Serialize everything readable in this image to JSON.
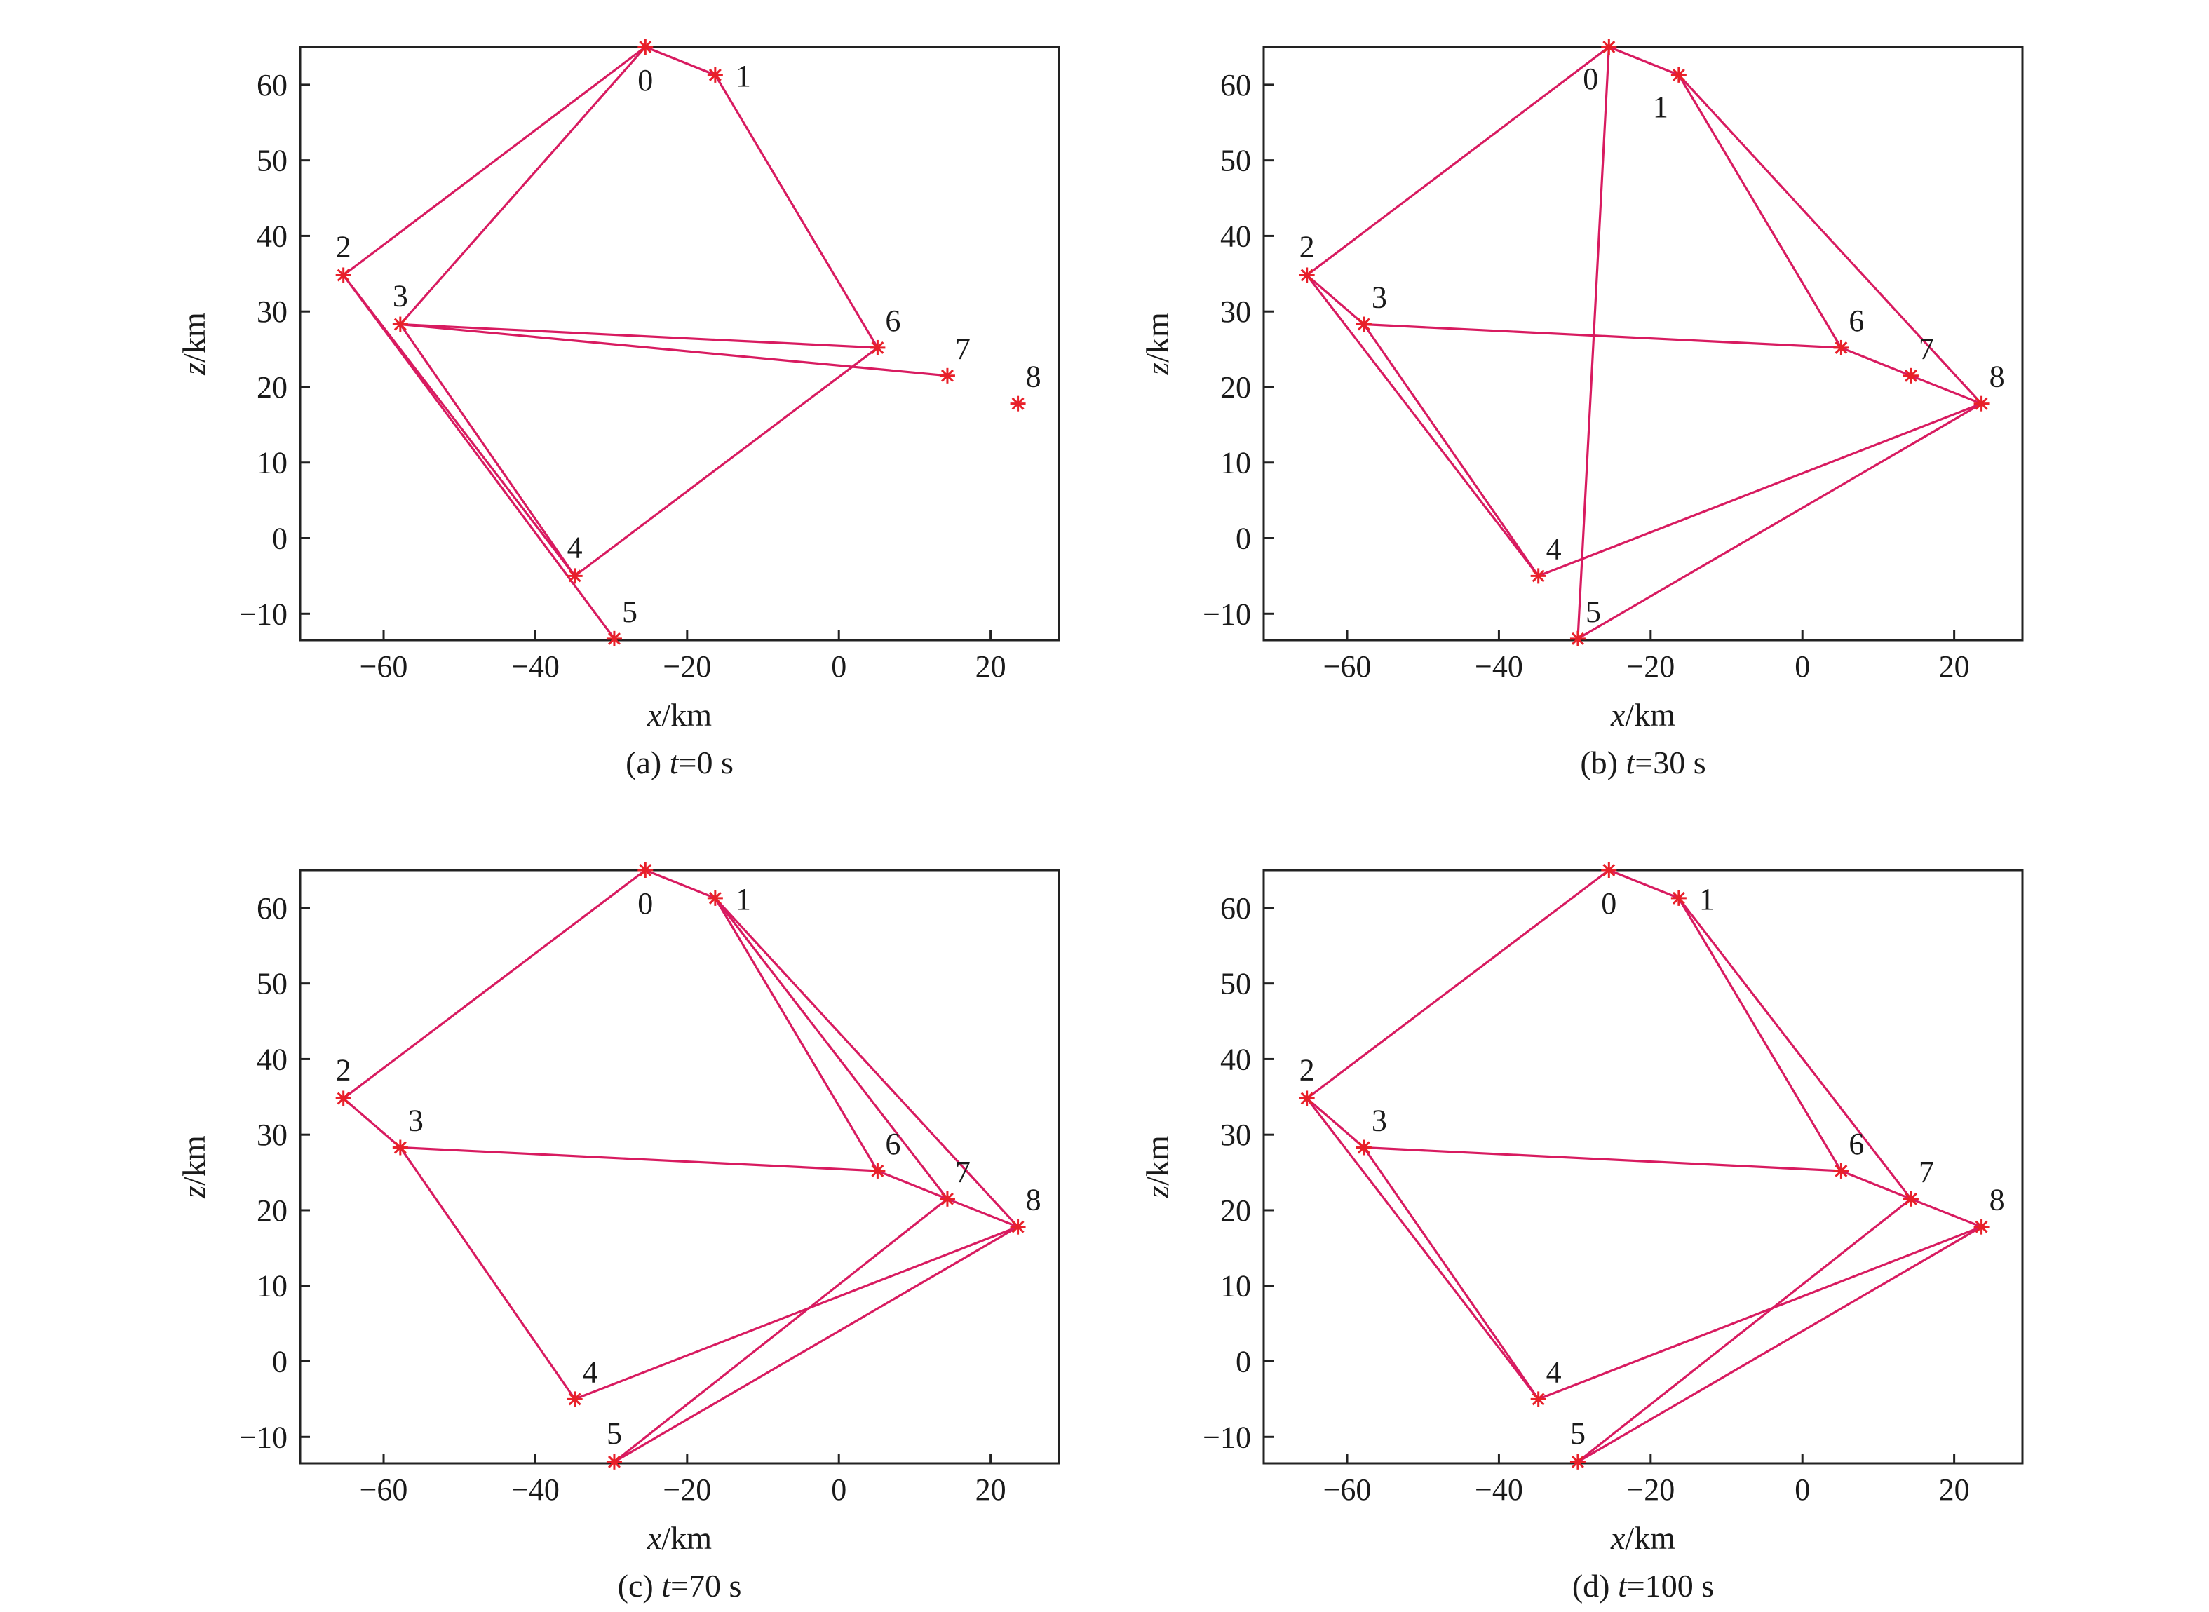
{
  "chart_data": [
    {
      "id": "a",
      "type": "network-scatter",
      "caption_prefix": "(a) ",
      "caption_var": "t",
      "caption_value": "=0 s",
      "xlabel_var": "x",
      "xlabel_unit": "/km",
      "ylabel_var": "z",
      "ylabel_unit": "/km",
      "xlim": [
        -71,
        29
      ],
      "ylim": [
        -13.5,
        65
      ],
      "xticks": [
        -60,
        -40,
        -20,
        0,
        20
      ],
      "yticks": [
        -10,
        0,
        10,
        20,
        30,
        40,
        50,
        60
      ],
      "grid": false,
      "edge_color": "#d81b60",
      "marker_color": "#e8202a",
      "nodes": [
        {
          "label": "0",
          "x": -25.5,
          "z": 65.0,
          "label_pos": "below"
        },
        {
          "label": "1",
          "x": -16.3,
          "z": 61.3,
          "label_pos": "right"
        },
        {
          "label": "2",
          "x": -65.3,
          "z": 34.8,
          "label_pos": "above"
        },
        {
          "label": "3",
          "x": -57.8,
          "z": 28.3,
          "label_pos": "above"
        },
        {
          "label": "4",
          "x": -34.8,
          "z": -5.0,
          "label_pos": "above"
        },
        {
          "label": "5",
          "x": -29.6,
          "z": -13.3,
          "label_pos": "above-right"
        },
        {
          "label": "6",
          "x": 5.1,
          "z": 25.2,
          "label_pos": "above-right"
        },
        {
          "label": "7",
          "x": 14.3,
          "z": 21.5,
          "label_pos": "above-right"
        },
        {
          "label": "8",
          "x": 23.6,
          "z": 17.8,
          "label_pos": "above-right"
        }
      ],
      "edges": [
        [
          "0",
          "1"
        ],
        [
          "0",
          "2"
        ],
        [
          "0",
          "3"
        ],
        [
          "1",
          "6"
        ],
        [
          "2",
          "4"
        ],
        [
          "2",
          "5"
        ],
        [
          "3",
          "4"
        ],
        [
          "3",
          "6"
        ],
        [
          "3",
          "7"
        ],
        [
          "4",
          "6"
        ]
      ]
    },
    {
      "id": "b",
      "type": "network-scatter",
      "caption_prefix": "(b) ",
      "caption_var": "t",
      "caption_value": "=30 s",
      "xlabel_var": "x",
      "xlabel_unit": "/km",
      "ylabel_var": "z",
      "ylabel_unit": "/km",
      "xlim": [
        -71,
        29
      ],
      "ylim": [
        -13.5,
        65
      ],
      "xticks": [
        -60,
        -40,
        -20,
        0,
        20
      ],
      "yticks": [
        -10,
        0,
        10,
        20,
        30,
        40,
        50,
        60
      ],
      "grid": false,
      "edge_color": "#d81b60",
      "marker_color": "#e8202a",
      "nodes": [
        {
          "label": "0",
          "x": -25.5,
          "z": 65.0,
          "label_pos": "below-left"
        },
        {
          "label": "1",
          "x": -16.3,
          "z": 61.3,
          "label_pos": "below-left"
        },
        {
          "label": "2",
          "x": -65.3,
          "z": 34.8,
          "label_pos": "above"
        },
        {
          "label": "3",
          "x": -57.8,
          "z": 28.3,
          "label_pos": "above-right"
        },
        {
          "label": "4",
          "x": -34.8,
          "z": -5.0,
          "label_pos": "above-right"
        },
        {
          "label": "5",
          "x": -29.6,
          "z": -13.3,
          "label_pos": "above-right"
        },
        {
          "label": "6",
          "x": 5.1,
          "z": 25.2,
          "label_pos": "above-right"
        },
        {
          "label": "7",
          "x": 14.3,
          "z": 21.5,
          "label_pos": "above-right"
        },
        {
          "label": "8",
          "x": 23.6,
          "z": 17.8,
          "label_pos": "above-right"
        }
      ],
      "edges": [
        [
          "0",
          "1"
        ],
        [
          "0",
          "2"
        ],
        [
          "0",
          "5"
        ],
        [
          "1",
          "6"
        ],
        [
          "1",
          "8"
        ],
        [
          "2",
          "3"
        ],
        [
          "2",
          "4"
        ],
        [
          "3",
          "4"
        ],
        [
          "3",
          "6"
        ],
        [
          "6",
          "7"
        ],
        [
          "7",
          "8"
        ],
        [
          "4",
          "8"
        ],
        [
          "5",
          "8"
        ]
      ]
    },
    {
      "id": "c",
      "type": "network-scatter",
      "caption_prefix": "(c) ",
      "caption_var": "t",
      "caption_value": "=70 s",
      "xlabel_var": "x",
      "xlabel_unit": "/km",
      "ylabel_var": "z",
      "ylabel_unit": "/km",
      "xlim": [
        -71,
        29
      ],
      "ylim": [
        -13.5,
        65
      ],
      "xticks": [
        -60,
        -40,
        -20,
        0,
        20
      ],
      "yticks": [
        -10,
        0,
        10,
        20,
        30,
        40,
        50,
        60
      ],
      "grid": false,
      "edge_color": "#d81b60",
      "marker_color": "#e8202a",
      "nodes": [
        {
          "label": "0",
          "x": -25.5,
          "z": 65.0,
          "label_pos": "below"
        },
        {
          "label": "1",
          "x": -16.3,
          "z": 61.3,
          "label_pos": "right"
        },
        {
          "label": "2",
          "x": -65.3,
          "z": 34.8,
          "label_pos": "above"
        },
        {
          "label": "3",
          "x": -57.8,
          "z": 28.3,
          "label_pos": "above-right"
        },
        {
          "label": "4",
          "x": -34.8,
          "z": -5.0,
          "label_pos": "above-right"
        },
        {
          "label": "5",
          "x": -29.6,
          "z": -13.3,
          "label_pos": "above"
        },
        {
          "label": "6",
          "x": 5.1,
          "z": 25.2,
          "label_pos": "above-right"
        },
        {
          "label": "7",
          "x": 14.3,
          "z": 21.5,
          "label_pos": "above-right"
        },
        {
          "label": "8",
          "x": 23.6,
          "z": 17.8,
          "label_pos": "above-right"
        }
      ],
      "edges": [
        [
          "0",
          "1"
        ],
        [
          "0",
          "2"
        ],
        [
          "1",
          "6"
        ],
        [
          "1",
          "7"
        ],
        [
          "1",
          "8"
        ],
        [
          "2",
          "3"
        ],
        [
          "3",
          "4"
        ],
        [
          "3",
          "6"
        ],
        [
          "6",
          "7"
        ],
        [
          "7",
          "8"
        ],
        [
          "4",
          "8"
        ],
        [
          "5",
          "7"
        ],
        [
          "5",
          "8"
        ]
      ]
    },
    {
      "id": "d",
      "type": "network-scatter",
      "caption_prefix": "(d) ",
      "caption_var": "t",
      "caption_value": "=100 s",
      "xlabel_var": "x",
      "xlabel_unit": "/km",
      "ylabel_var": "z",
      "ylabel_unit": "/km",
      "xlim": [
        -71,
        29
      ],
      "ylim": [
        -13.5,
        65
      ],
      "xticks": [
        -60,
        -40,
        -20,
        0,
        20
      ],
      "yticks": [
        -10,
        0,
        10,
        20,
        30,
        40,
        50,
        60
      ],
      "grid": false,
      "edge_color": "#d81b60",
      "marker_color": "#e8202a",
      "nodes": [
        {
          "label": "0",
          "x": -25.5,
          "z": 65.0,
          "label_pos": "below"
        },
        {
          "label": "1",
          "x": -16.3,
          "z": 61.3,
          "label_pos": "right"
        },
        {
          "label": "2",
          "x": -65.3,
          "z": 34.8,
          "label_pos": "above"
        },
        {
          "label": "3",
          "x": -57.8,
          "z": 28.3,
          "label_pos": "above-right"
        },
        {
          "label": "4",
          "x": -34.8,
          "z": -5.0,
          "label_pos": "above-right"
        },
        {
          "label": "5",
          "x": -29.6,
          "z": -13.3,
          "label_pos": "above"
        },
        {
          "label": "6",
          "x": 5.1,
          "z": 25.2,
          "label_pos": "above-right"
        },
        {
          "label": "7",
          "x": 14.3,
          "z": 21.5,
          "label_pos": "above-right"
        },
        {
          "label": "8",
          "x": 23.6,
          "z": 17.8,
          "label_pos": "above-right"
        }
      ],
      "edges": [
        [
          "0",
          "1"
        ],
        [
          "0",
          "2"
        ],
        [
          "1",
          "6"
        ],
        [
          "1",
          "7"
        ],
        [
          "2",
          "3"
        ],
        [
          "2",
          "4"
        ],
        [
          "3",
          "4"
        ],
        [
          "3",
          "6"
        ],
        [
          "6",
          "7"
        ],
        [
          "7",
          "8"
        ],
        [
          "4",
          "8"
        ],
        [
          "5",
          "7"
        ],
        [
          "5",
          "8"
        ]
      ]
    }
  ]
}
